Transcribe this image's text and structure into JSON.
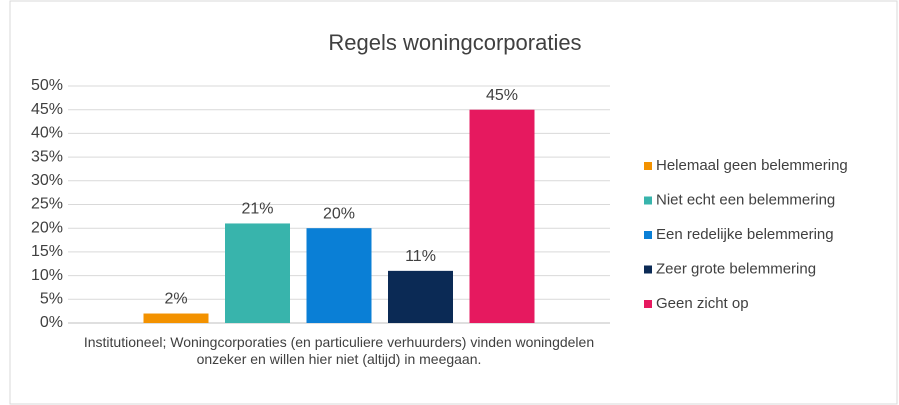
{
  "chart_data": {
    "type": "bar",
    "title": "Regels woningcorporaties",
    "categories": [
      "Institutioneel; Woningcorporaties (en particuliere verhuurders) vinden woningdelen onzeker en willen hier niet (altijd) in meegaan."
    ],
    "series": [
      {
        "name": "Helemaal geen belemmering",
        "color": "#f39200",
        "values": [
          2
        ],
        "value_labels": [
          "2%"
        ]
      },
      {
        "name": "Niet echt een belemmering",
        "color": "#38b4ac",
        "values": [
          21
        ],
        "value_labels": [
          "21%"
        ]
      },
      {
        "name": "Een redelijke belemmering",
        "color": "#0a7fd6",
        "values": [
          20
        ],
        "value_labels": [
          "20%"
        ]
      },
      {
        "name": "Zeer grote belemmering",
        "color": "#0b2a55",
        "values": [
          11
        ],
        "value_labels": [
          "11%"
        ]
      },
      {
        "name": "Geen zicht op",
        "color": "#e6195f",
        "values": [
          45
        ],
        "value_labels": [
          "45%"
        ]
      }
    ],
    "ylim": [
      0,
      50
    ],
    "yticks": [
      {
        "value": 0,
        "label": "0%"
      },
      {
        "value": 5,
        "label": "5%"
      },
      {
        "value": 10,
        "label": "10%"
      },
      {
        "value": 15,
        "label": "15%"
      },
      {
        "value": 20,
        "label": "20%"
      },
      {
        "value": 25,
        "label": "25%"
      },
      {
        "value": 30,
        "label": "30%"
      },
      {
        "value": 35,
        "label": "35%"
      },
      {
        "value": 40,
        "label": "40%"
      },
      {
        "value": 45,
        "label": "45%"
      },
      {
        "value": 50,
        "label": "50%"
      }
    ],
    "grid": true,
    "legend": "right"
  }
}
